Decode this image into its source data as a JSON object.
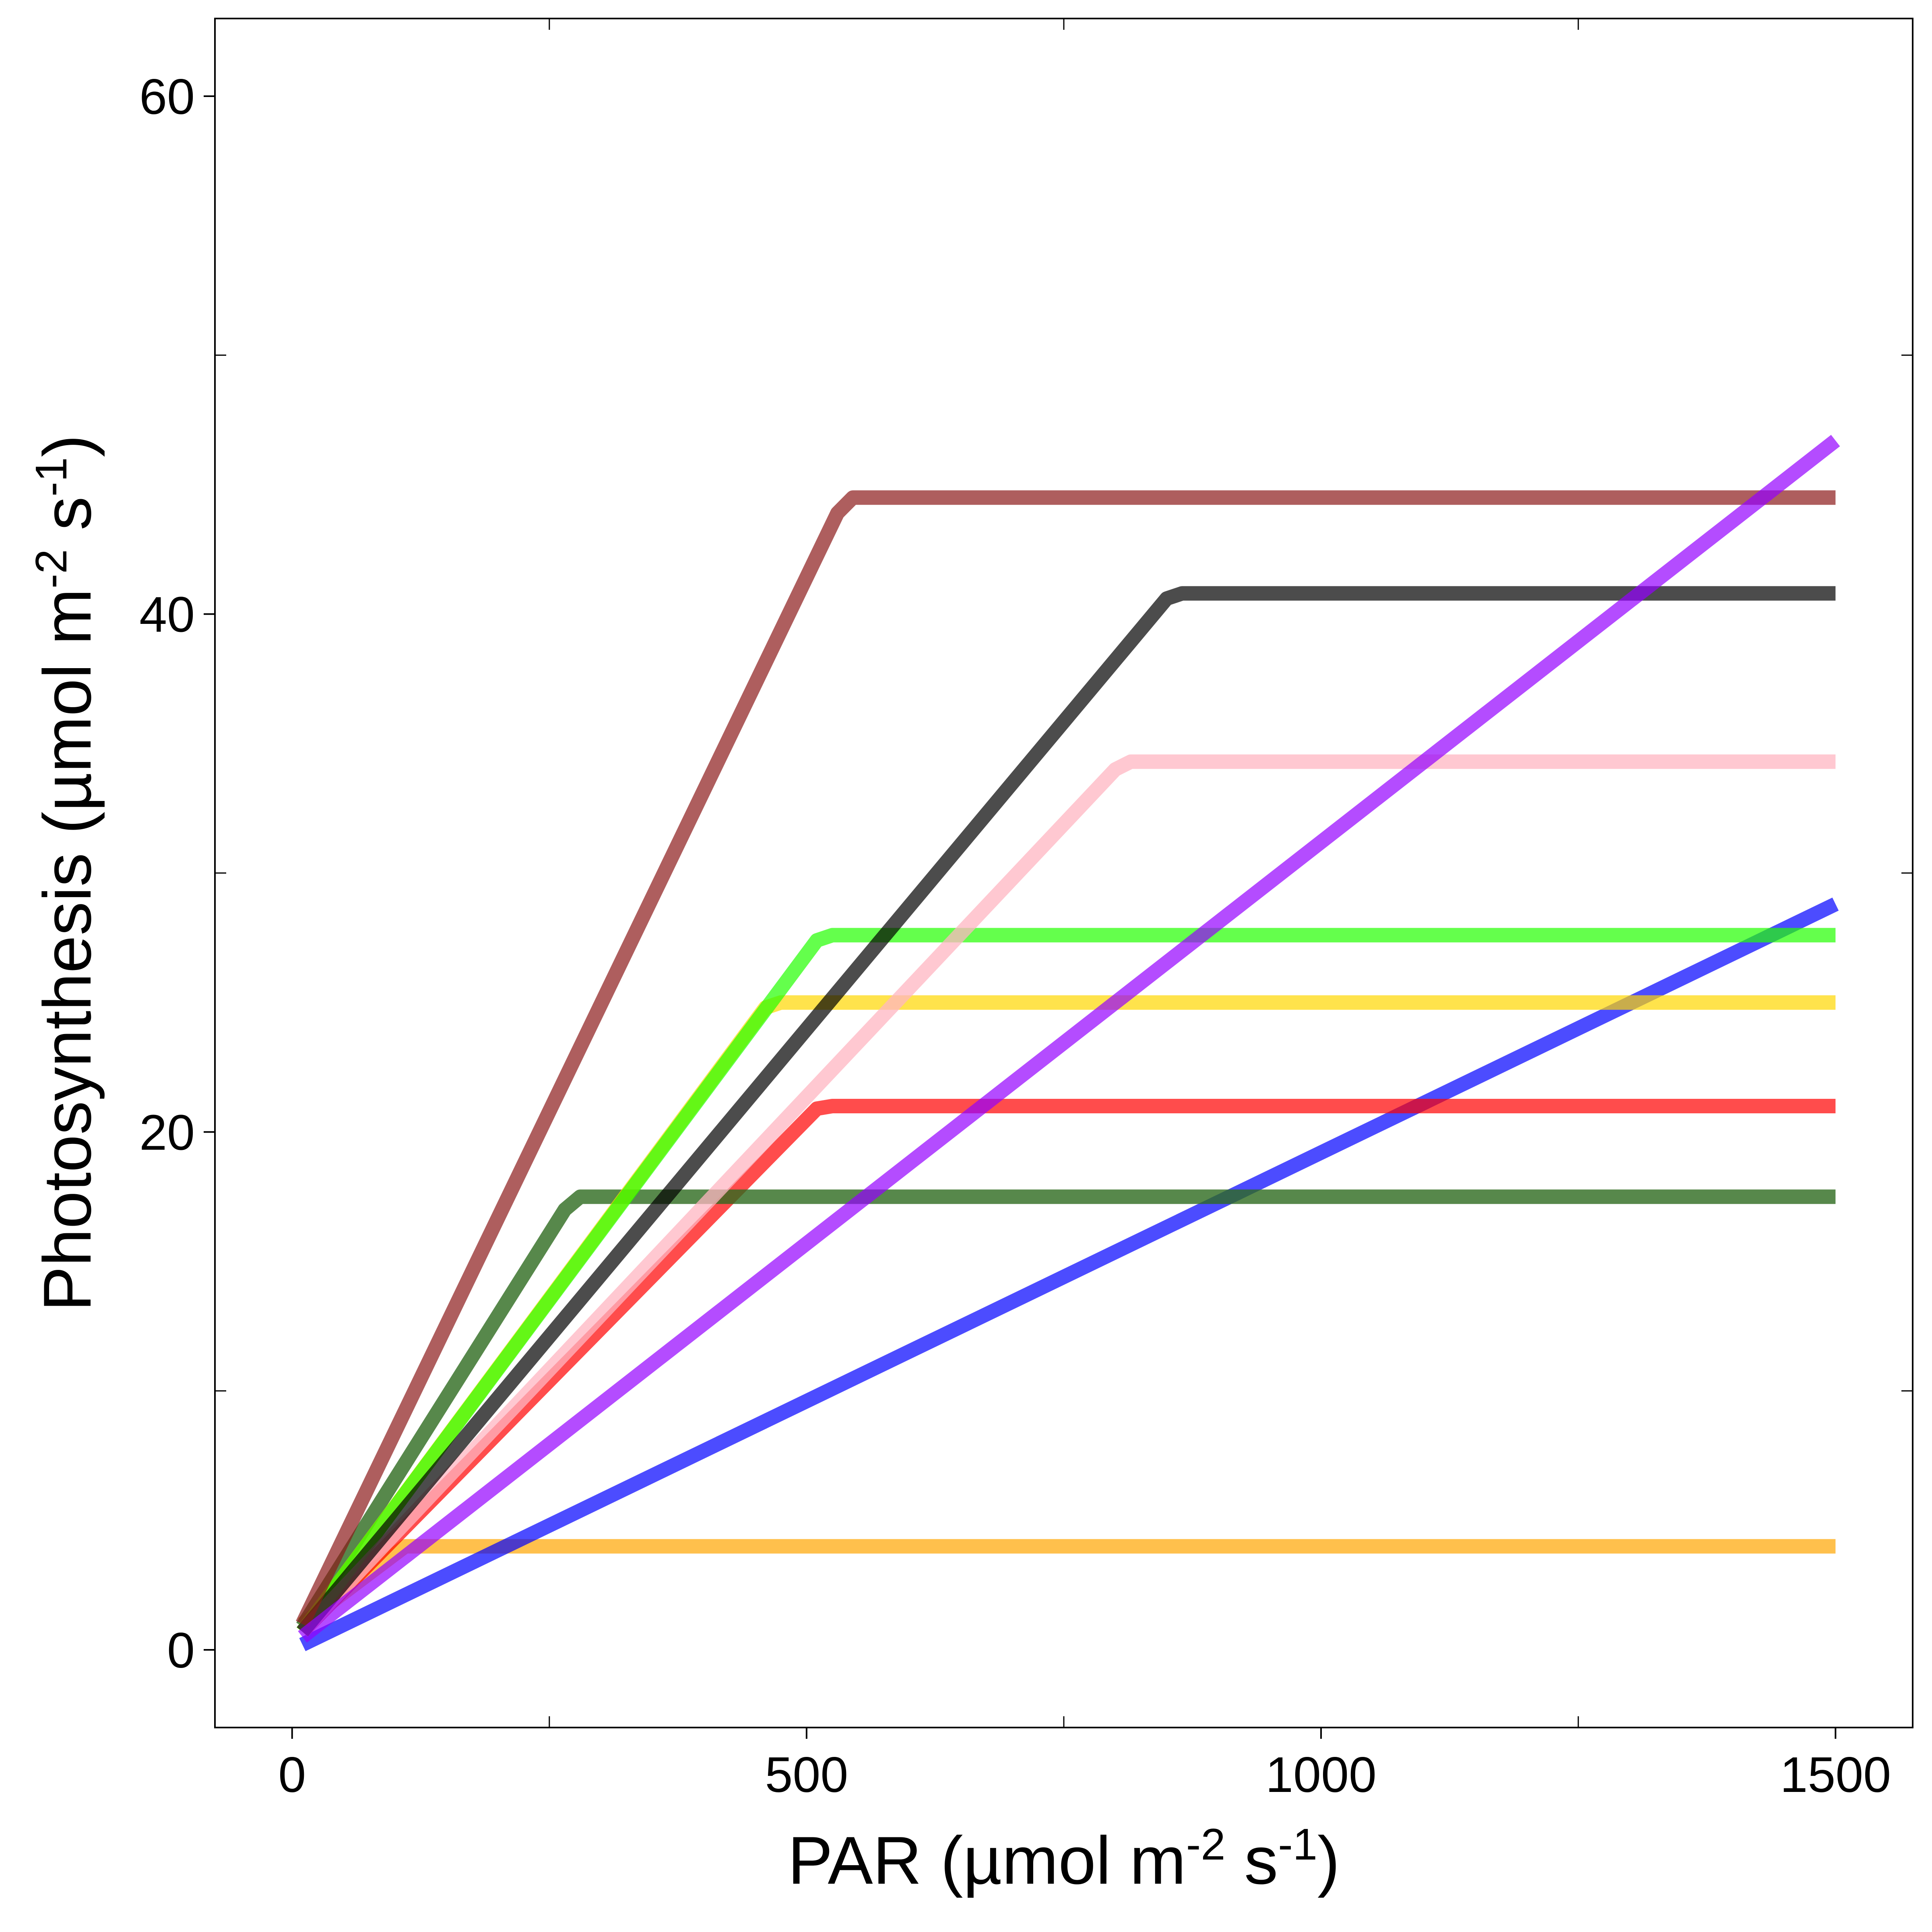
{
  "chart_data": {
    "type": "line",
    "title": "",
    "xlabel": {
      "pre": "PAR (µmol m",
      "sup1": "-2",
      "mid": " s",
      "sup2": "-1",
      "post": ")"
    },
    "ylabel": {
      "pre": "Photosynthesis (µmol m",
      "sup1": "-2",
      "mid": " s",
      "sup2": "-1",
      "post": ")"
    },
    "xlim": [
      -75,
      1575
    ],
    "ylim": [
      -3,
      63
    ],
    "x_ticks": [
      0,
      500,
      1000,
      1500
    ],
    "x_tick_labels": [
      "0",
      "500",
      "1000",
      "1500"
    ],
    "x_minor_ticks": [
      250,
      750,
      1250
    ],
    "y_ticks": [
      0,
      20,
      40,
      60
    ],
    "y_tick_labels": [
      "0",
      "20",
      "40",
      "60"
    ],
    "y_minor_ticks": [
      10,
      30,
      50
    ],
    "grid": false,
    "legend": "none",
    "series": [
      {
        "color": "#FFA500",
        "opacity": 0.7,
        "points": [
          [
            10,
            1.0
          ],
          [
            110,
            4.0
          ],
          [
            1500,
            4.0
          ]
        ]
      },
      {
        "color": "#0000FF",
        "opacity": 0.7,
        "points": [
          [
            10,
            0.2
          ],
          [
            1500,
            28.8
          ]
        ]
      },
      {
        "color": "#FF0000",
        "opacity": 0.7,
        "points": [
          [
            10,
            0.7
          ],
          [
            510,
            20.9
          ],
          [
            525,
            21.0
          ],
          [
            1500,
            21.0
          ]
        ]
      },
      {
        "color": "#2D6A1E",
        "opacity": 0.8,
        "points": [
          [
            10,
            0.9
          ],
          [
            265,
            17.0
          ],
          [
            280,
            17.5
          ],
          [
            1500,
            17.5
          ]
        ]
      },
      {
        "color": "#FFD700",
        "opacity": 0.7,
        "points": [
          [
            10,
            0.7
          ],
          [
            460,
            24.8
          ],
          [
            475,
            25.0
          ],
          [
            1500,
            25.0
          ]
        ]
      },
      {
        "color": "#22FF00",
        "opacity": 0.7,
        "points": [
          [
            10,
            0.7
          ],
          [
            510,
            27.4
          ],
          [
            525,
            27.6
          ],
          [
            1500,
            27.6
          ]
        ]
      },
      {
        "color": "#FFB6C1",
        "opacity": 0.75,
        "points": [
          [
            10,
            0.7
          ],
          [
            800,
            34.0
          ],
          [
            815,
            34.3
          ],
          [
            1500,
            34.3
          ]
        ]
      },
      {
        "color": "#000000",
        "opacity": 0.7,
        "points": [
          [
            10,
            0.7
          ],
          [
            850,
            40.6
          ],
          [
            865,
            40.8
          ],
          [
            1500,
            40.8
          ]
        ]
      },
      {
        "color": "#8B1A1A",
        "opacity": 0.7,
        "points": [
          [
            10,
            1.0
          ],
          [
            530,
            43.9
          ],
          [
            545,
            44.5
          ],
          [
            1500,
            44.5
          ]
        ]
      },
      {
        "color": "#9400FF",
        "opacity": 0.7,
        "points": [
          [
            10,
            0.5
          ],
          [
            1500,
            46.7
          ]
        ]
      }
    ]
  }
}
